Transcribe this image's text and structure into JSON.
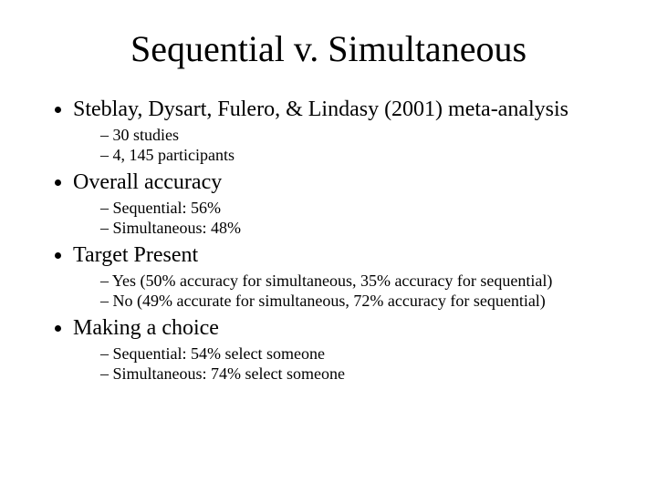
{
  "title": "Sequential v. Simultaneous",
  "bullets": [
    {
      "text": "Steblay, Dysart, Fulero, & Lindasy (2001) meta-analysis",
      "sub": [
        "30 studies",
        "4, 145 participants"
      ]
    },
    {
      "text": "Overall accuracy",
      "sub": [
        "Sequential: 56%",
        "Simultaneous: 48%"
      ]
    },
    {
      "text": "Target Present",
      "sub": [
        "Yes (50% accuracy for simultaneous, 35% accuracy for sequential)",
        "No (49% accurate for simultaneous, 72% accuracy for sequential)"
      ]
    },
    {
      "text": "Making a choice",
      "sub": [
        "Sequential: 54% select someone",
        "Simultaneous: 74% select someone"
      ]
    }
  ],
  "colors": {
    "background": "#ffffff",
    "text": "#000000"
  },
  "typography": {
    "title_fontsize": 40,
    "bullet_fontsize": 24,
    "subbullet_fontsize": 18,
    "font_family": "Times New Roman"
  }
}
